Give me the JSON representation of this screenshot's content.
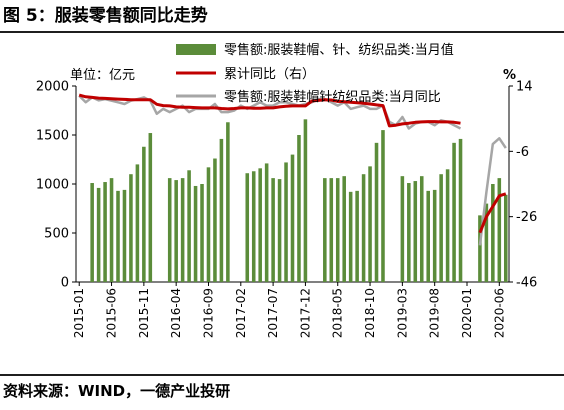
{
  "header": {
    "title": "图 5：服装零售额同比走势"
  },
  "footer": {
    "source": "资料来源：WIND，一德产业投研"
  },
  "chart_data": {
    "type": "bar+line",
    "title": "图 5：服装零售额同比走势",
    "left_axis": {
      "unit_label": "单位：亿元",
      "ylim": [
        0,
        2000
      ],
      "ticks": [
        "0",
        "500",
        "1000",
        "1500",
        "2000"
      ]
    },
    "right_axis": {
      "unit_label": "%",
      "ylim": [
        -46,
        14
      ],
      "ticks": [
        "14",
        "-6",
        "-26",
        "-46"
      ]
    },
    "x_tick_labels": [
      "2015-01",
      "2015-06",
      "2015-11",
      "2016-04",
      "2016-09",
      "2017-02",
      "2017-07",
      "2017-12",
      "2018-05",
      "2018-10",
      "2019-03",
      "2019-08",
      "2020-01",
      "2020-06"
    ],
    "x_tick_index": [
      0,
      5,
      10,
      15,
      20,
      25,
      30,
      35,
      40,
      45,
      50,
      55,
      60,
      65
    ],
    "legend": {
      "bar": "零售额:服装鞋帽、针、纺织品类:当月值",
      "cum": "累计同比（右）",
      "yoy": "零售额:服装鞋帽针纺织品类:当月同比"
    },
    "colors": {
      "bar": "#5b8c3a",
      "cum": "#c00000",
      "yoy": "#a6a6a6"
    },
    "bars": [
      null,
      null,
      1010,
      960,
      1020,
      1060,
      930,
      940,
      1100,
      1200,
      1380,
      1520,
      null,
      null,
      1060,
      1040,
      1060,
      1140,
      980,
      1000,
      1170,
      1260,
      1460,
      1630,
      null,
      null,
      1110,
      1130,
      1160,
      1210,
      1060,
      1050,
      1220,
      1300,
      1500,
      1660,
      null,
      null,
      1060,
      1060,
      1060,
      1080,
      920,
      930,
      1100,
      1180,
      1420,
      1550,
      null,
      null,
      1080,
      1010,
      1030,
      1080,
      930,
      940,
      1100,
      1150,
      1420,
      1460,
      null,
      null,
      680,
      800,
      1000,
      1060,
      890
    ],
    "cum": [
      11.2,
      10.7,
      10.5,
      10.3,
      10.2,
      10.1,
      10.0,
      9.9,
      9.8,
      9.8,
      9.8,
      9.8,
      8.4,
      8.0,
      7.9,
      7.6,
      7.5,
      7.5,
      7.4,
      7.3,
      7.3,
      7.3,
      7.1,
      7.0,
      7.1,
      7.3,
      7.3,
      7.2,
      7.2,
      7.3,
      7.3,
      7.6,
      7.8,
      7.9,
      7.9,
      7.9,
      9.4,
      9.6,
      9.8,
      9.7,
      9.3,
      9.2,
      9.0,
      8.9,
      8.7,
      8.5,
      8.2,
      8.0,
      1.8,
      2.0,
      2.4,
      2.6,
      2.9,
      3.0,
      3.1,
      3.1,
      3.0,
      3.0,
      2.9,
      2.6,
      null,
      null,
      -30.9,
      -26.0,
      -22.9,
      -19.6,
      -19.0
    ],
    "yoy": [
      11.0,
      9.0,
      10.5,
      9.6,
      10.0,
      9.5,
      9.0,
      8.5,
      9.5,
      10.0,
      10.5,
      9.5,
      5.5,
      7.0,
      6.0,
      7.0,
      8.0,
      6.0,
      7.0,
      7.0,
      7.0,
      8.5,
      6.0,
      6.0,
      6.5,
      8.0,
      7.0,
      8.0,
      9.0,
      8.0,
      8.0,
      9.0,
      9.0,
      8.5,
      8.0,
      8.5,
      9.0,
      10.0,
      10.0,
      9.0,
      8.0,
      9.0,
      7.0,
      7.5,
      8.0,
      7.0,
      7.0,
      8.0,
      3.0,
      2.0,
      4.5,
      1.0,
      2.5,
      3.0,
      3.0,
      2.0,
      3.5,
      3.0,
      2.0,
      1.0,
      null,
      null,
      -34.8,
      -18.5,
      -3.8,
      -2.0,
      -5.0
    ]
  }
}
